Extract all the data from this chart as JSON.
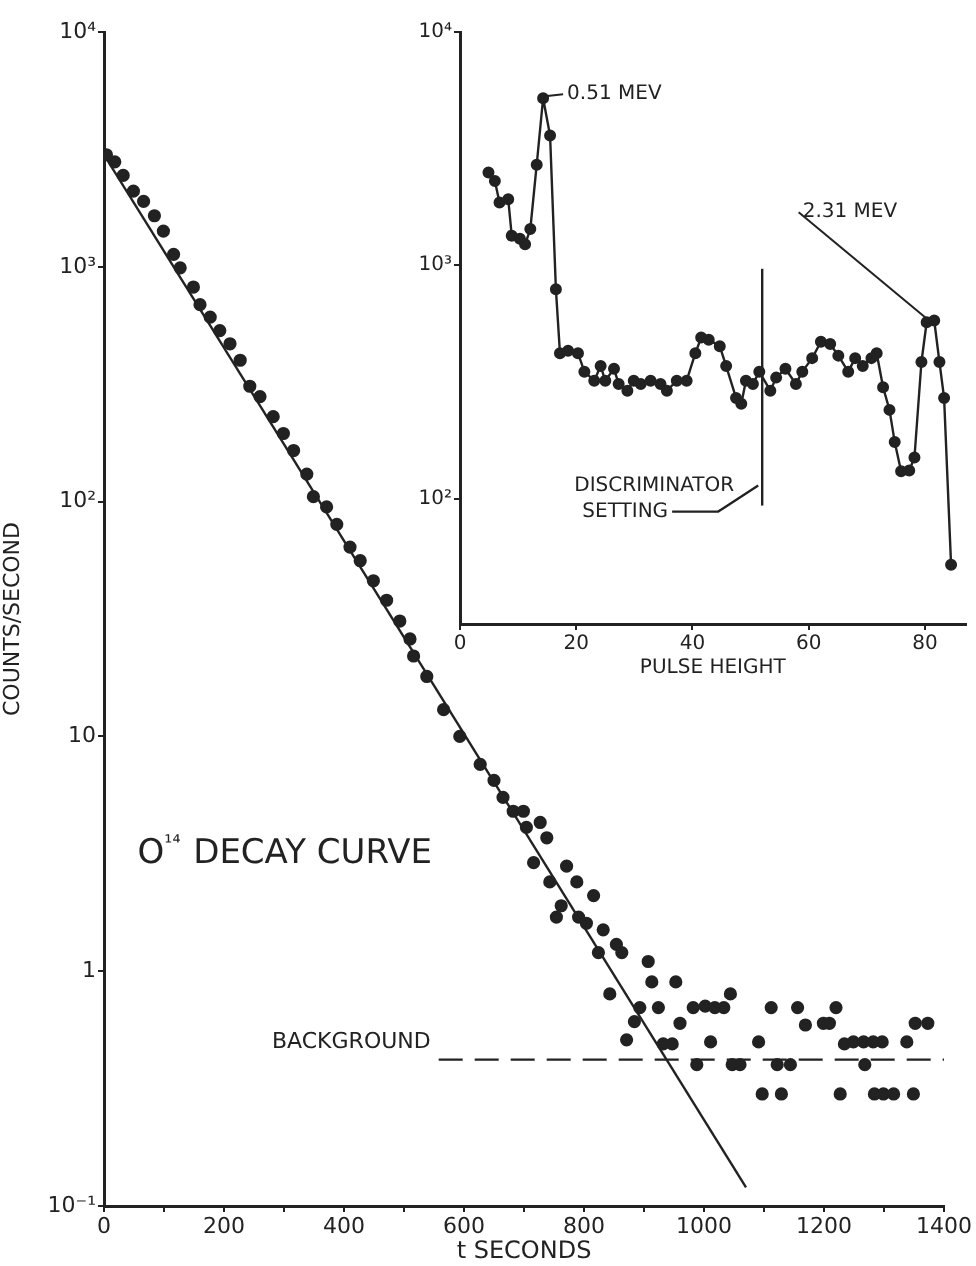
{
  "chart_data": [
    {
      "type": "scatter",
      "xlabel": "t SECONDS",
      "ylabel": "COUNTS/SECOND",
      "annotations": [
        "O¹⁴ DECAY CURVE"
      ],
      "log": "y",
      "grid": false,
      "legend": false,
      "marker": "circle",
      "xlim": [
        0,
        1400
      ],
      "ylim": [
        0.1,
        10000
      ],
      "xticks": [
        0,
        {
          "value": 100,
          "label": null
        },
        200,
        {
          "value": 300,
          "label": null
        },
        400,
        {
          "value": 500,
          "label": null
        },
        600,
        {
          "value": 700,
          "label": null
        },
        800,
        {
          "value": 900,
          "label": null
        },
        1000,
        {
          "value": 1100,
          "label": null
        },
        1200,
        {
          "value": 1300,
          "label": null
        },
        1400
      ],
      "yticks": [
        {
          "value": 0.1,
          "label": "10⁻¹"
        },
        1,
        10,
        {
          "value": 100,
          "label": "10²"
        },
        {
          "value": 1000,
          "label": "10³"
        },
        {
          "value": 10000,
          "label": "10⁴"
        }
      ],
      "ref_lines": [
        {
          "axis": "y",
          "value": 0.42,
          "label": "BACKGROUND",
          "line_style": "dashed",
          "color": "#222222"
        }
      ],
      "series": [
        {
          "color": "#222222",
          "x": [
            4,
            18,
            32,
            49,
            66,
            84,
            99,
            116,
            127,
            149,
            160,
            177,
            193,
            210,
            227,
            243,
            260,
            282,
            299,
            316,
            338,
            349,
            371,
            388,
            410,
            427,
            449,
            471,
            493,
            510,
            516,
            538,
            566,
            593,
            627,
            650,
            665,
            682,
            699,
            704,
            727,
            738,
            716,
            743,
            771,
            762,
            788,
            754,
            791,
            804,
            816,
            832,
            824,
            854,
            863,
            843,
            871,
            884,
            893,
            907,
            913,
            924,
            932,
            947,
            953,
            960,
            982,
            988,
            1002,
            1018,
            1033,
            1011,
            1044,
            1047,
            1060,
            1091,
            1097,
            1112,
            1122,
            1129,
            1144,
            1156,
            1169,
            1199,
            1209,
            1220,
            1227,
            1234,
            1249,
            1266,
            1268,
            1282,
            1297,
            1284,
            1299,
            1316,
            1338,
            1349,
            1352,
            1373
          ],
          "values": [
            3000,
            2800,
            2450,
            2100,
            1900,
            1650,
            1420,
            1130,
            990,
            820,
            690,
            610,
            535,
            470,
            400,
            310,
            280,
            230,
            195,
            165,
            131,
            105,
            95,
            80,
            64,
            56,
            46,
            38,
            31,
            26,
            22,
            18,
            13,
            10,
            7.6,
            6.5,
            5.5,
            4.8,
            4.8,
            4.1,
            4.3,
            3.7,
            2.9,
            2.4,
            2.8,
            1.9,
            2.4,
            1.7,
            1.7,
            1.6,
            2.1,
            1.5,
            1.2,
            1.3,
            1.2,
            0.8,
            0.51,
            0.61,
            0.7,
            1.1,
            0.9,
            0.7,
            0.49,
            0.49,
            0.9,
            0.6,
            0.7,
            0.4,
            0.71,
            0.7,
            0.7,
            0.5,
            0.8,
            0.4,
            0.4,
            0.5,
            0.3,
            0.7,
            0.4,
            0.3,
            0.4,
            0.7,
            0.59,
            0.6,
            0.6,
            0.7,
            0.3,
            0.49,
            0.5,
            0.5,
            0.4,
            0.5,
            0.5,
            0.3,
            0.3,
            0.3,
            0.5,
            0.3,
            0.6,
            0.6
          ]
        },
        {
          "type": "line",
          "marker": "none",
          "color": "#222222",
          "x": [
            0,
            1070
          ],
          "values": [
            3000,
            0.12
          ]
        }
      ]
    },
    {
      "type": "line",
      "xlabel": "PULSE HEIGHT",
      "log": "y",
      "grid": false,
      "legend": false,
      "marker": "circle",
      "xlim": [
        0,
        87
      ],
      "ylim": [
        29,
        10000
      ],
      "xticks": [
        0,
        20,
        40,
        60,
        80
      ],
      "yticks": [
        {
          "value": 100,
          "label": "10²"
        },
        {
          "value": 1000,
          "label": "10³"
        },
        {
          "value": 10000,
          "label": "10⁴"
        }
      ],
      "annotations": [
        {
          "text": "0.51 MEV",
          "x": 14.3,
          "y": 5200
        },
        {
          "text": "2.31 MEV",
          "x": 80.3,
          "y": 570
        }
      ],
      "ref_lines": [
        {
          "axis": "x",
          "value": 52,
          "label": "DISCRIMINATOR SETTING",
          "color": "#222222"
        }
      ],
      "series": [
        {
          "color": "#222222",
          "x": [
            4.9,
            6.0,
            6.8,
            8.3,
            8.9,
            10.3,
            11.2,
            12.1,
            13.2,
            14.3,
            15.5,
            16.5,
            17.2,
            18.6,
            20.3,
            21.4,
            23.1,
            24.2,
            25.0,
            26.5,
            27.3,
            28.8,
            29.9,
            31.1,
            32.8,
            34.5,
            35.6,
            37.3,
            39.0,
            40.5,
            41.5,
            42.8,
            44.7,
            45.8,
            47.5,
            48.4,
            49.2,
            50.4,
            51.5,
            53.4,
            54.4,
            56.0,
            57.8,
            58.9,
            60.6,
            62.1,
            63.7,
            65.1,
            66.8,
            68.0,
            69.3,
            70.8,
            71.7,
            72.8,
            73.9,
            74.8,
            75.9,
            77.3,
            78.2,
            79.4,
            80.3,
            81.6,
            82.5,
            83.3,
            84.5
          ],
          "values": [
            2500,
            2300,
            1860,
            1920,
            1340,
            1300,
            1230,
            1430,
            2700,
            5200,
            3600,
            790,
            420,
            430,
            420,
            350,
            320,
            370,
            320,
            360,
            310,
            290,
            320,
            310,
            320,
            310,
            290,
            320,
            320,
            420,
            490,
            480,
            450,
            370,
            270,
            255,
            320,
            310,
            350,
            290,
            330,
            360,
            310,
            350,
            400,
            470,
            460,
            410,
            350,
            400,
            370,
            400,
            420,
            300,
            240,
            175,
            131,
            132,
            150,
            385,
            570,
            580,
            385,
            270,
            52
          ]
        }
      ]
    }
  ]
}
